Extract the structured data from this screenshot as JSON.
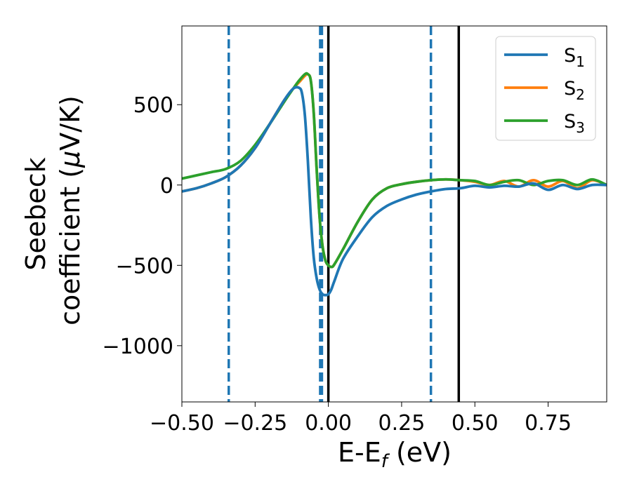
{
  "chart_data": {
    "type": "line",
    "xlabel": "E-E",
    "xlabel_sub": "f",
    "xlabel_unit": " (eV)",
    "ylabel_line1": "Seebeck",
    "ylabel_line2_pre": "coefficient  (",
    "ylabel_mu": "μ",
    "ylabel_line2_post": "V/K)",
    "xlim": [
      -0.5,
      0.95
    ],
    "ylim": [
      -1350,
      990
    ],
    "xticks": [
      -0.5,
      -0.25,
      0.0,
      0.25,
      0.5,
      0.75
    ],
    "xtick_labels": [
      "−0.50",
      "−0.25",
      "0.00",
      "0.25",
      "0.50",
      "0.75"
    ],
    "yticks": [
      500,
      0,
      -500,
      -1000
    ],
    "ytick_labels": [
      "500",
      "0",
      "−500",
      "−1000"
    ],
    "grid": false,
    "legend_position": "top-right",
    "vlines": [
      {
        "x": -0.34,
        "style": "dashed",
        "color": "#1f77b4"
      },
      {
        "x": -0.028,
        "style": "dashed",
        "color": "#1f77b4"
      },
      {
        "x": -0.022,
        "style": "dashed",
        "color": "#1f77b4"
      },
      {
        "x": 0.0,
        "style": "solid",
        "color": "#000000"
      },
      {
        "x": 0.35,
        "style": "dashed",
        "color": "#1f77b4"
      },
      {
        "x": 0.445,
        "style": "solid",
        "color": "#000000"
      }
    ],
    "series": [
      {
        "name": "S",
        "name_sub": "1",
        "color": "#1f77b4",
        "x": [
          -0.5,
          -0.45,
          -0.4,
          -0.35,
          -0.3,
          -0.25,
          -0.2,
          -0.15,
          -0.12,
          -0.1,
          -0.09,
          -0.08,
          -0.07,
          -0.06,
          -0.05,
          -0.04,
          -0.03,
          -0.02,
          -0.01,
          0.0,
          0.01,
          0.02,
          0.05,
          0.1,
          0.15,
          0.2,
          0.25,
          0.3,
          0.35,
          0.4,
          0.45,
          0.5,
          0.55,
          0.6,
          0.65,
          0.7,
          0.75,
          0.8,
          0.85,
          0.9,
          0.95
        ],
        "y": [
          -40,
          -20,
          10,
          50,
          120,
          230,
          380,
          530,
          600,
          605,
          570,
          430,
          150,
          -200,
          -450,
          -580,
          -650,
          -680,
          -685,
          -680,
          -650,
          -600,
          -460,
          -320,
          -200,
          -130,
          -90,
          -60,
          -40,
          -25,
          -20,
          -5,
          -15,
          -5,
          -10,
          10,
          -30,
          0,
          -25,
          0,
          0
        ]
      },
      {
        "name": "S",
        "name_sub": "2",
        "color": "#ff7f0e",
        "x": [
          -0.5,
          -0.45,
          -0.4,
          -0.35,
          -0.3,
          -0.25,
          -0.2,
          -0.15,
          -0.12,
          -0.1,
          -0.08,
          -0.07,
          -0.06,
          -0.05,
          -0.04,
          -0.03,
          -0.02,
          -0.01,
          0.0,
          0.01,
          0.02,
          0.05,
          0.1,
          0.15,
          0.2,
          0.25,
          0.3,
          0.35,
          0.4,
          0.45,
          0.5,
          0.55,
          0.6,
          0.65,
          0.7,
          0.75,
          0.8,
          0.85,
          0.9,
          0.95
        ],
        "y": [
          -40,
          -20,
          10,
          50,
          120,
          230,
          380,
          530,
          600,
          640,
          680,
          690,
          650,
          450,
          100,
          -200,
          -380,
          -470,
          -500,
          -510,
          -495,
          -400,
          -230,
          -90,
          -20,
          5,
          20,
          30,
          35,
          30,
          20,
          0,
          25,
          -10,
          30,
          -10,
          25,
          -20,
          30,
          0
        ]
      },
      {
        "name": "S",
        "name_sub": "3",
        "color": "#2ca02c",
        "x": [
          -0.5,
          -0.45,
          -0.4,
          -0.35,
          -0.3,
          -0.25,
          -0.2,
          -0.15,
          -0.12,
          -0.1,
          -0.08,
          -0.07,
          -0.06,
          -0.05,
          -0.04,
          -0.03,
          -0.02,
          -0.01,
          0.0,
          0.01,
          0.02,
          0.05,
          0.1,
          0.15,
          0.2,
          0.25,
          0.3,
          0.35,
          0.4,
          0.45,
          0.5,
          0.55,
          0.6,
          0.65,
          0.7,
          0.75,
          0.8,
          0.85,
          0.9,
          0.95
        ],
        "y": [
          40,
          60,
          80,
          100,
          150,
          250,
          380,
          520,
          600,
          650,
          690,
          690,
          650,
          450,
          100,
          -200,
          -380,
          -470,
          -500,
          -510,
          -495,
          -400,
          -230,
          -90,
          -20,
          5,
          20,
          30,
          35,
          30,
          25,
          0,
          20,
          30,
          0,
          25,
          30,
          0,
          35,
          0
        ]
      }
    ]
  }
}
